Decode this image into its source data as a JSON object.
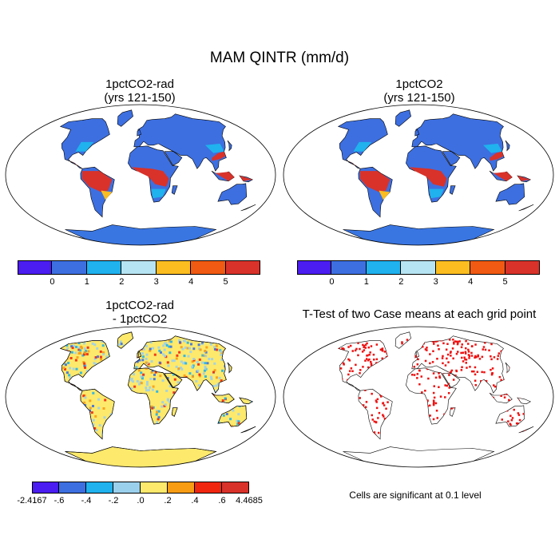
{
  "title": "MAM QINTR (mm/d)",
  "panels": [
    {
      "id": "a",
      "title_line1": "1pctCO2-rad",
      "title_line2": "(yrs 121-150)"
    },
    {
      "id": "b",
      "title_line1": "1pctCO2",
      "title_line2": "(yrs 121-150)"
    },
    {
      "id": "c",
      "title_line1": "1pctCO2-rad",
      "title_line2": "- 1pctCO2"
    },
    {
      "id": "d",
      "title_line1": "T-Test of two Case means at each grid point",
      "title_line2": ""
    }
  ],
  "colorbar_main": {
    "colors": [
      "#4b1df0",
      "#3d6fe0",
      "#1fb2ee",
      "#b7e4f2",
      "#fbbd20",
      "#f05a12",
      "#d8322a"
    ],
    "tick_labels": [
      "0",
      "1",
      "2",
      "3",
      "4",
      "5"
    ]
  },
  "colorbar_diff": {
    "colors": [
      "#4b1df0",
      "#3d6fe0",
      "#1fb2ee",
      "#9bd0ec",
      "#fde96c",
      "#f89c14",
      "#f0260f",
      "#d8322a"
    ],
    "tick_labels": [
      "-2.4167",
      "-.6",
      "-.4",
      "-.2",
      ".0",
      ".2",
      ".4",
      ".6",
      "4.4685"
    ]
  },
  "note": "Cells are significant at 0.1 level",
  "colors": {
    "ocean": "#ffffff",
    "ice": "#3a76e2",
    "land_low": "#3d6fe0",
    "land_tropics": "#d8322a",
    "diff_land": "#fde96c",
    "diff_ice": "#fde96c",
    "signif": "#ee1111"
  }
}
